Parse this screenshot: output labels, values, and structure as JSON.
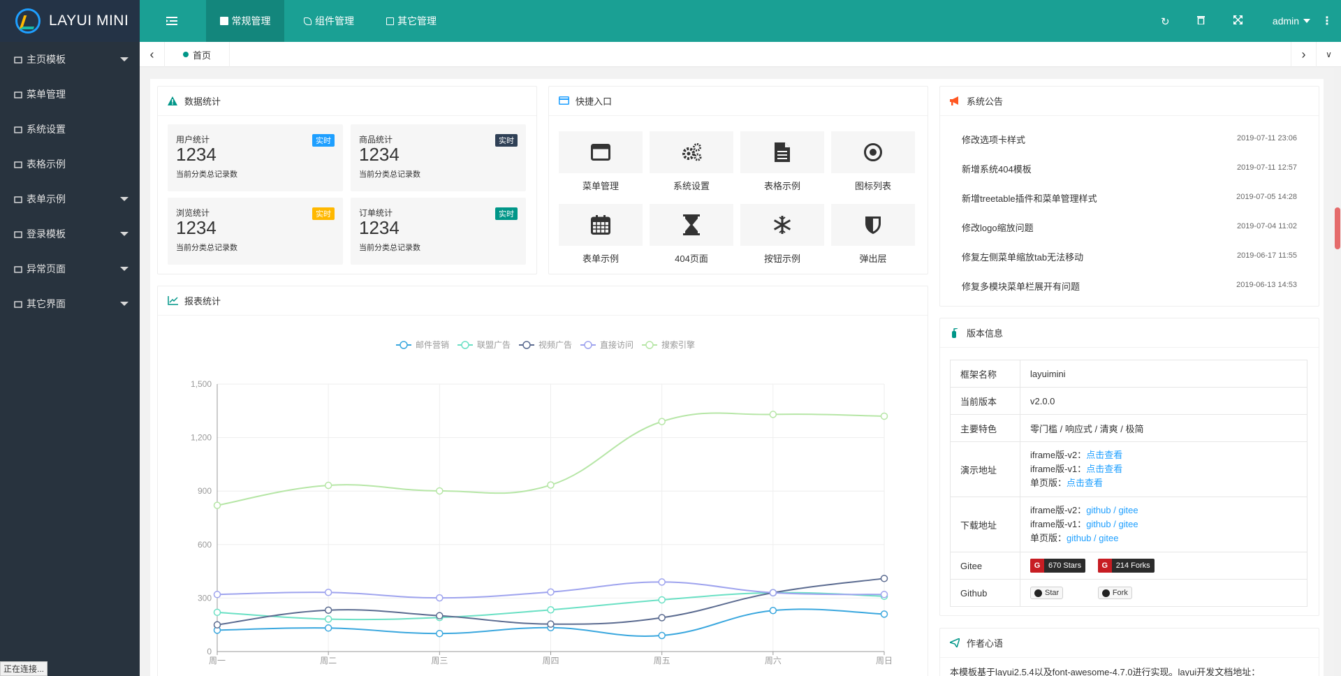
{
  "app": {
    "logo_text": "LAYUI MINI"
  },
  "sidebar": {
    "items": [
      {
        "label": "主页模板",
        "icon": "home-icon",
        "has_children": true
      },
      {
        "label": "菜单管理",
        "icon": "window-icon",
        "has_children": false
      },
      {
        "label": "系统设置",
        "icon": "gears-icon",
        "has_children": false
      },
      {
        "label": "表格示例",
        "icon": "file-text-icon",
        "has_children": false
      },
      {
        "label": "表单示例",
        "icon": "calendar-icon",
        "has_children": true
      },
      {
        "label": "登录模板",
        "icon": "flag-icon",
        "has_children": true
      },
      {
        "label": "异常页面",
        "icon": "home-icon",
        "has_children": true
      },
      {
        "label": "其它界面",
        "icon": "snowflake-icon",
        "has_children": true
      }
    ],
    "status_text": "正在连接..."
  },
  "header": {
    "nav": [
      {
        "label": "常规管理",
        "active": true
      },
      {
        "label": "组件管理",
        "active": false
      },
      {
        "label": "其它管理",
        "active": false
      }
    ],
    "user": "admin"
  },
  "tabs": {
    "home_label": "首页"
  },
  "stats": {
    "title": "数据统计",
    "boxes": [
      {
        "name": "用户统计",
        "value": "1234",
        "sub": "当前分类总记录数",
        "badge": "实时",
        "badge_color": "#1e9fff"
      },
      {
        "name": "商品统计",
        "value": "1234",
        "sub": "当前分类总记录数",
        "badge": "实时",
        "badge_color": "#2f4056"
      },
      {
        "name": "浏览统计",
        "value": "1234",
        "sub": "当前分类总记录数",
        "badge": "实时",
        "badge_color": "#ffb800"
      },
      {
        "name": "订单统计",
        "value": "1234",
        "sub": "当前分类总记录数",
        "badge": "实时",
        "badge_color": "#009688"
      }
    ]
  },
  "quick": {
    "title": "快捷入口",
    "items": [
      {
        "label": "菜单管理",
        "icon": "window-icon"
      },
      {
        "label": "系统设置",
        "icon": "gears-icon"
      },
      {
        "label": "表格示例",
        "icon": "file-text-icon"
      },
      {
        "label": "图标列表",
        "icon": "dot-circle-icon"
      },
      {
        "label": "表单示例",
        "icon": "calendar-icon"
      },
      {
        "label": "404页面",
        "icon": "hourglass-icon"
      },
      {
        "label": "按钮示例",
        "icon": "snowflake-icon"
      },
      {
        "label": "弹出层",
        "icon": "shield-icon"
      }
    ]
  },
  "announce": {
    "title": "系统公告",
    "items": [
      {
        "title": "修改选项卡样式",
        "date": "2019-07-11 23:06"
      },
      {
        "title": "新增系统404模板",
        "date": "2019-07-11 12:57"
      },
      {
        "title": "新增treetable插件和菜单管理样式",
        "date": "2019-07-05 14:28"
      },
      {
        "title": "修改logo缩放问题",
        "date": "2019-07-04 11:02"
      },
      {
        "title": "修复左侧菜单缩放tab无法移动",
        "date": "2019-06-17 11:55"
      },
      {
        "title": "修复多模块菜单栏展开有问题",
        "date": "2019-06-13 14:53"
      }
    ]
  },
  "version": {
    "title": "版本信息",
    "framework_key": "框架名称",
    "framework_val": "layuimini",
    "version_key": "当前版本",
    "version_val": "v2.0.0",
    "feature_key": "主要特色",
    "feature_val": "零门槛 / 响应式 / 清爽 / 极简",
    "demo_key": "演示地址",
    "demo_rows": [
      {
        "prefix": "iframe版-v2：",
        "link": "点击查看"
      },
      {
        "prefix": "iframe版-v1：",
        "link": "点击查看"
      },
      {
        "prefix": "单页版：",
        "link": "点击查看"
      }
    ],
    "download_key": "下载地址",
    "download_rows": [
      {
        "prefix": "iframe版-v2：",
        "link": "github / gitee"
      },
      {
        "prefix": "iframe版-v1：",
        "link": "github / gitee"
      },
      {
        "prefix": "单页版：",
        "link": "github / gitee"
      }
    ],
    "gitee_key": "Gitee",
    "gitee_stars": "670 Stars",
    "gitee_forks": "214 Forks",
    "github_key": "Github",
    "github_star": "Star",
    "github_fork": "Fork"
  },
  "author": {
    "title": "作者心语",
    "text": "本模板基于layui2.5.4以及font-awesome-4.7.0进行实现。layui开发文档地址："
  },
  "report": {
    "title": "报表统计"
  },
  "chart_data": {
    "type": "line",
    "categories": [
      "周一",
      "周二",
      "周三",
      "周四",
      "周五",
      "周六",
      "周日"
    ],
    "ylim": [
      0,
      1500
    ],
    "yticks": [
      "0",
      "300",
      "600",
      "900",
      "1,200",
      "1,500"
    ],
    "legend_position": "top-center",
    "grid": true,
    "series": [
      {
        "name": "邮件营销",
        "color": "#3aa7de",
        "values": [
          120,
          132,
          101,
          134,
          90,
          230,
          210
        ]
      },
      {
        "name": "联盟广告",
        "color": "#6ae0c4",
        "values": [
          220,
          182,
          191,
          234,
          290,
          330,
          310
        ]
      },
      {
        "name": "视频广告",
        "color": "#5b6b90",
        "values": [
          150,
          232,
          201,
          154,
          190,
          330,
          410
        ]
      },
      {
        "name": "直接访问",
        "color": "#9ea3ee",
        "values": [
          320,
          332,
          301,
          334,
          390,
          330,
          320
        ]
      },
      {
        "name": "搜索引擎",
        "color": "#b6e6a6",
        "values": [
          820,
          932,
          901,
          934,
          1290,
          1330,
          1320
        ]
      }
    ]
  }
}
